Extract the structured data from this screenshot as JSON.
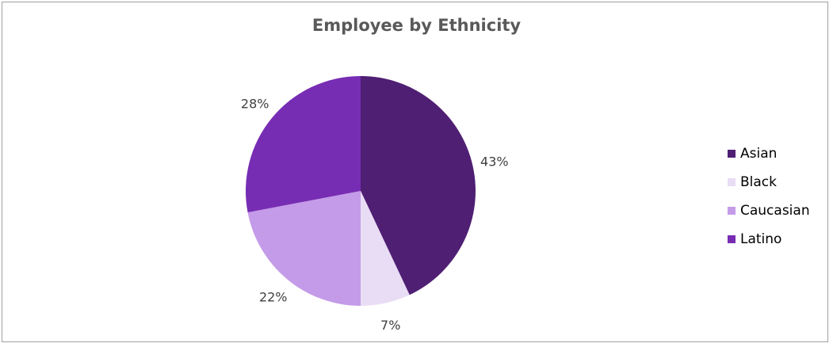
{
  "chart_data": {
    "type": "pie",
    "title": "Employee by Ethnicity",
    "categories": [
      "Asian",
      "Black",
      "Caucasian",
      "Latino"
    ],
    "values": [
      43,
      7,
      22,
      28
    ],
    "labels": [
      "43%",
      "7%",
      "22%",
      "28%"
    ],
    "colors": [
      "#4f1f73",
      "#e9dcf5",
      "#c49be8",
      "#772db3"
    ],
    "legend_position": "right"
  }
}
